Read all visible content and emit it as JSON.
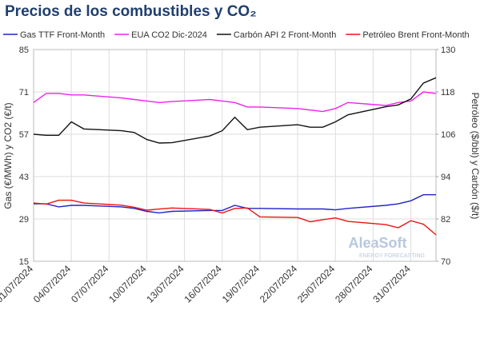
{
  "chart_data": {
    "type": "line",
    "title": "Precios de los combustibles y CO₂",
    "ylabel": "Gas (€/MWh) y CO2 (€/t)",
    "y2label": "Petróleo ($/bbl) y Carbón ($/t)",
    "watermark": [
      "AleaSoft",
      "ENERGY FORECASTING"
    ],
    "x": [
      "01/07/2024",
      "02/07/2024",
      "03/07/2024",
      "04/07/2024",
      "05/07/2024",
      "08/07/2024",
      "09/07/2024",
      "10/07/2024",
      "11/07/2024",
      "12/07/2024",
      "15/07/2024",
      "16/07/2024",
      "17/07/2024",
      "18/07/2024",
      "19/07/2024",
      "22/07/2024",
      "23/07/2024",
      "24/07/2024",
      "25/07/2024",
      "26/07/2024",
      "29/07/2024",
      "30/07/2024",
      "31/07/2024",
      "01/08/2024",
      "02/08/2024"
    ],
    "xlim": [
      "01/07/2024",
      "02/08/2024"
    ],
    "xticks": [
      "01/07/2024",
      "04/07/2024",
      "07/07/2024",
      "10/07/2024",
      "13/07/2024",
      "16/07/2024",
      "19/07/2024",
      "22/07/2024",
      "25/07/2024",
      "28/07/2024",
      "31/07/2024"
    ],
    "ylim": [
      15,
      85
    ],
    "yticks": [
      15,
      29,
      43,
      57,
      71,
      85
    ],
    "y2lim": [
      70,
      130
    ],
    "y2ticks": [
      70,
      82,
      94,
      106,
      118,
      130
    ],
    "grid": true,
    "legend": "top",
    "series": [
      {
        "name": "Gas TTF Front-Month",
        "color": "#2222cc",
        "axis": "y",
        "values": [
          34,
          34,
          33,
          33.5,
          33.5,
          33,
          32.5,
          31.5,
          31,
          31.5,
          31.8,
          31.8,
          33.5,
          32.5,
          32.5,
          32.3,
          32.3,
          32.3,
          32,
          32.5,
          33.5,
          34,
          35,
          37,
          37
        ]
      },
      {
        "name": "EUA CO2 Dic-2024",
        "color": "#ee22ee",
        "axis": "y",
        "values": [
          67.5,
          70.5,
          70.5,
          70,
          70,
          69,
          68.5,
          68,
          67.5,
          67.8,
          68.5,
          68,
          67.5,
          66,
          66,
          65.5,
          65,
          64.5,
          65.5,
          67.5,
          66.5,
          67.5,
          68,
          71,
          70.5
        ]
      },
      {
        "name": "Carbón API 2 Front-Month",
        "color": "#111111",
        "axis": "y2",
        "values": [
          106,
          105.7,
          105.7,
          109.5,
          107.5,
          107,
          106.5,
          104.5,
          103.5,
          103.6,
          105.5,
          107,
          110.8,
          107.3,
          108,
          108.7,
          108,
          108,
          109.5,
          111.5,
          113.8,
          114.3,
          116,
          120.5,
          122
        ]
      },
      {
        "name": "Petróleo Brent Front-Month",
        "color": "#ee1111",
        "axis": "y2",
        "values": [
          86.5,
          86.2,
          87.3,
          87.3,
          86.5,
          85.9,
          85.3,
          84.5,
          84.8,
          85.1,
          84.7,
          83.7,
          85,
          85.1,
          82.6,
          82.4,
          81.2,
          81.8,
          82.3,
          81.3,
          80.4,
          79.5,
          81.5,
          80.5,
          77.5
        ]
      }
    ]
  }
}
